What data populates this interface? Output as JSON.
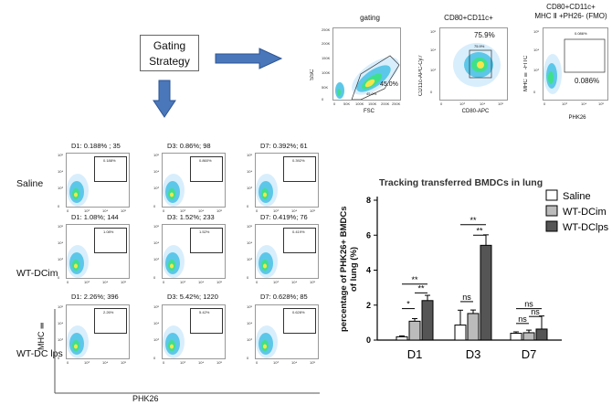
{
  "gating_box": {
    "line1": "Gating",
    "line2": "Strategy"
  },
  "gating_panels": [
    {
      "title": "gating",
      "ylabel": "SSC",
      "xlabel": "FSC",
      "pct_big": "45.0%",
      "pct_small": "45.0%"
    },
    {
      "title": "CD80+CD11c+",
      "ylabel": "CD11c-APC-Cy7",
      "xlabel": "CD80-APC",
      "pct_big": "75.9%",
      "pct_small": "75.9%"
    },
    {
      "title_line1": "CD80+CD11c+",
      "title_line2": "MHC Ⅱ +PH26- (FMO)",
      "ylabel": "MHC Ⅱ -FITC",
      "xlabel": "PHK26",
      "pct_big": "0.086%",
      "pct_small": "0.086%"
    }
  ],
  "gating_axis_ticks": {
    "ssc": [
      "250K",
      "200K",
      "150K",
      "100K",
      "50K",
      "0"
    ],
    "fsc": [
      "0",
      "50K",
      "100K",
      "150K",
      "200K",
      "250K"
    ],
    "log": [
      "10⁵",
      "10⁴",
      "10³",
      "0"
    ],
    "log_x": [
      "0",
      "10³",
      "10⁴",
      "10⁵"
    ]
  },
  "grid_axis_ticks": {
    "y": [
      "10⁵",
      "10⁴",
      "10³",
      "0"
    ],
    "x": [
      "0",
      "10³",
      "10⁴",
      "10⁵"
    ]
  },
  "grid": {
    "rows": [
      {
        "label": "Saline",
        "cells": [
          {
            "title": "D1:  0.188% ;  35",
            "gate_pct": "0.188%"
          },
          {
            "title": "D3:  0.86%;  98",
            "gate_pct": "0.860%"
          },
          {
            "title": "D7:  0.392%;  61",
            "gate_pct": "0.392%"
          }
        ]
      },
      {
        "label": "WT-DCim",
        "cells": [
          {
            "title": "D1:  1.08%;  144",
            "gate_pct": "1.08%"
          },
          {
            "title": "D3:  1.52%;  233",
            "gate_pct": "1.52%"
          },
          {
            "title": "D7:  0.419%;  76",
            "gate_pct": "0.419%"
          }
        ]
      },
      {
        "label": "WT-DC lps",
        "cells": [
          {
            "title": "D1:  2.26%;  396",
            "gate_pct": "2.26%"
          },
          {
            "title": "D3:  5.42%;  1220",
            "gate_pct": "5.42%"
          },
          {
            "title": "D7:  0.628%;  85",
            "gate_pct": "0.628%"
          }
        ]
      }
    ],
    "y_axis_label": "MHC Ⅱ",
    "x_axis_label": "PHK26"
  },
  "chart_data": {
    "type": "bar",
    "title": "Tracking transferred BMDCs in lung",
    "ylabel_line1": "percentage of PHK26+ BMDCs",
    "ylabel_line2": "of lung (%)",
    "categories": [
      "D1",
      "D3",
      "D7"
    ],
    "ylim": [
      0,
      8
    ],
    "yticks": [
      "0",
      "2",
      "4",
      "6",
      "8"
    ],
    "series": [
      {
        "name": "Saline",
        "color": "#ffffff",
        "values": [
          0.19,
          0.86,
          0.39
        ],
        "errors": [
          0.05,
          0.85,
          0.08
        ]
      },
      {
        "name": "WT-DCim",
        "color": "#bbbbbb",
        "values": [
          1.08,
          1.52,
          0.42
        ],
        "errors": [
          0.15,
          0.2,
          0.15
        ]
      },
      {
        "name": "WT-DClps",
        "color": "#555555",
        "values": [
          2.26,
          5.42,
          0.63
        ],
        "errors": [
          0.3,
          0.6,
          0.75
        ]
      }
    ],
    "significance": [
      {
        "text": "**",
        "group": 0,
        "from": 0,
        "to": 2,
        "y": 3.2
      },
      {
        "text": "**",
        "group": 0,
        "from": 1,
        "to": 2,
        "y": 2.7
      },
      {
        "text": "*",
        "group": 0,
        "from": 0,
        "to": 1,
        "y": 1.8
      },
      {
        "text": "ns",
        "group": 1,
        "from": 0,
        "to": 1,
        "y": 2.2
      },
      {
        "text": "**",
        "group": 1,
        "from": 0,
        "to": 2,
        "y": 6.6
      },
      {
        "text": "**",
        "group": 1,
        "from": 1,
        "to": 2,
        "y": 6.0
      },
      {
        "text": "ns",
        "group": 2,
        "from": 0,
        "to": 2,
        "y": 1.8
      },
      {
        "text": "ns",
        "group": 2,
        "from": 1,
        "to": 2,
        "y": 1.35
      },
      {
        "text": "ns",
        "group": 2,
        "from": 0,
        "to": 1,
        "y": 0.95
      }
    ],
    "legend_position": "top-right"
  },
  "colors": {
    "arrow": "#4a77b9",
    "arrow_dark": "#2c5597"
  }
}
